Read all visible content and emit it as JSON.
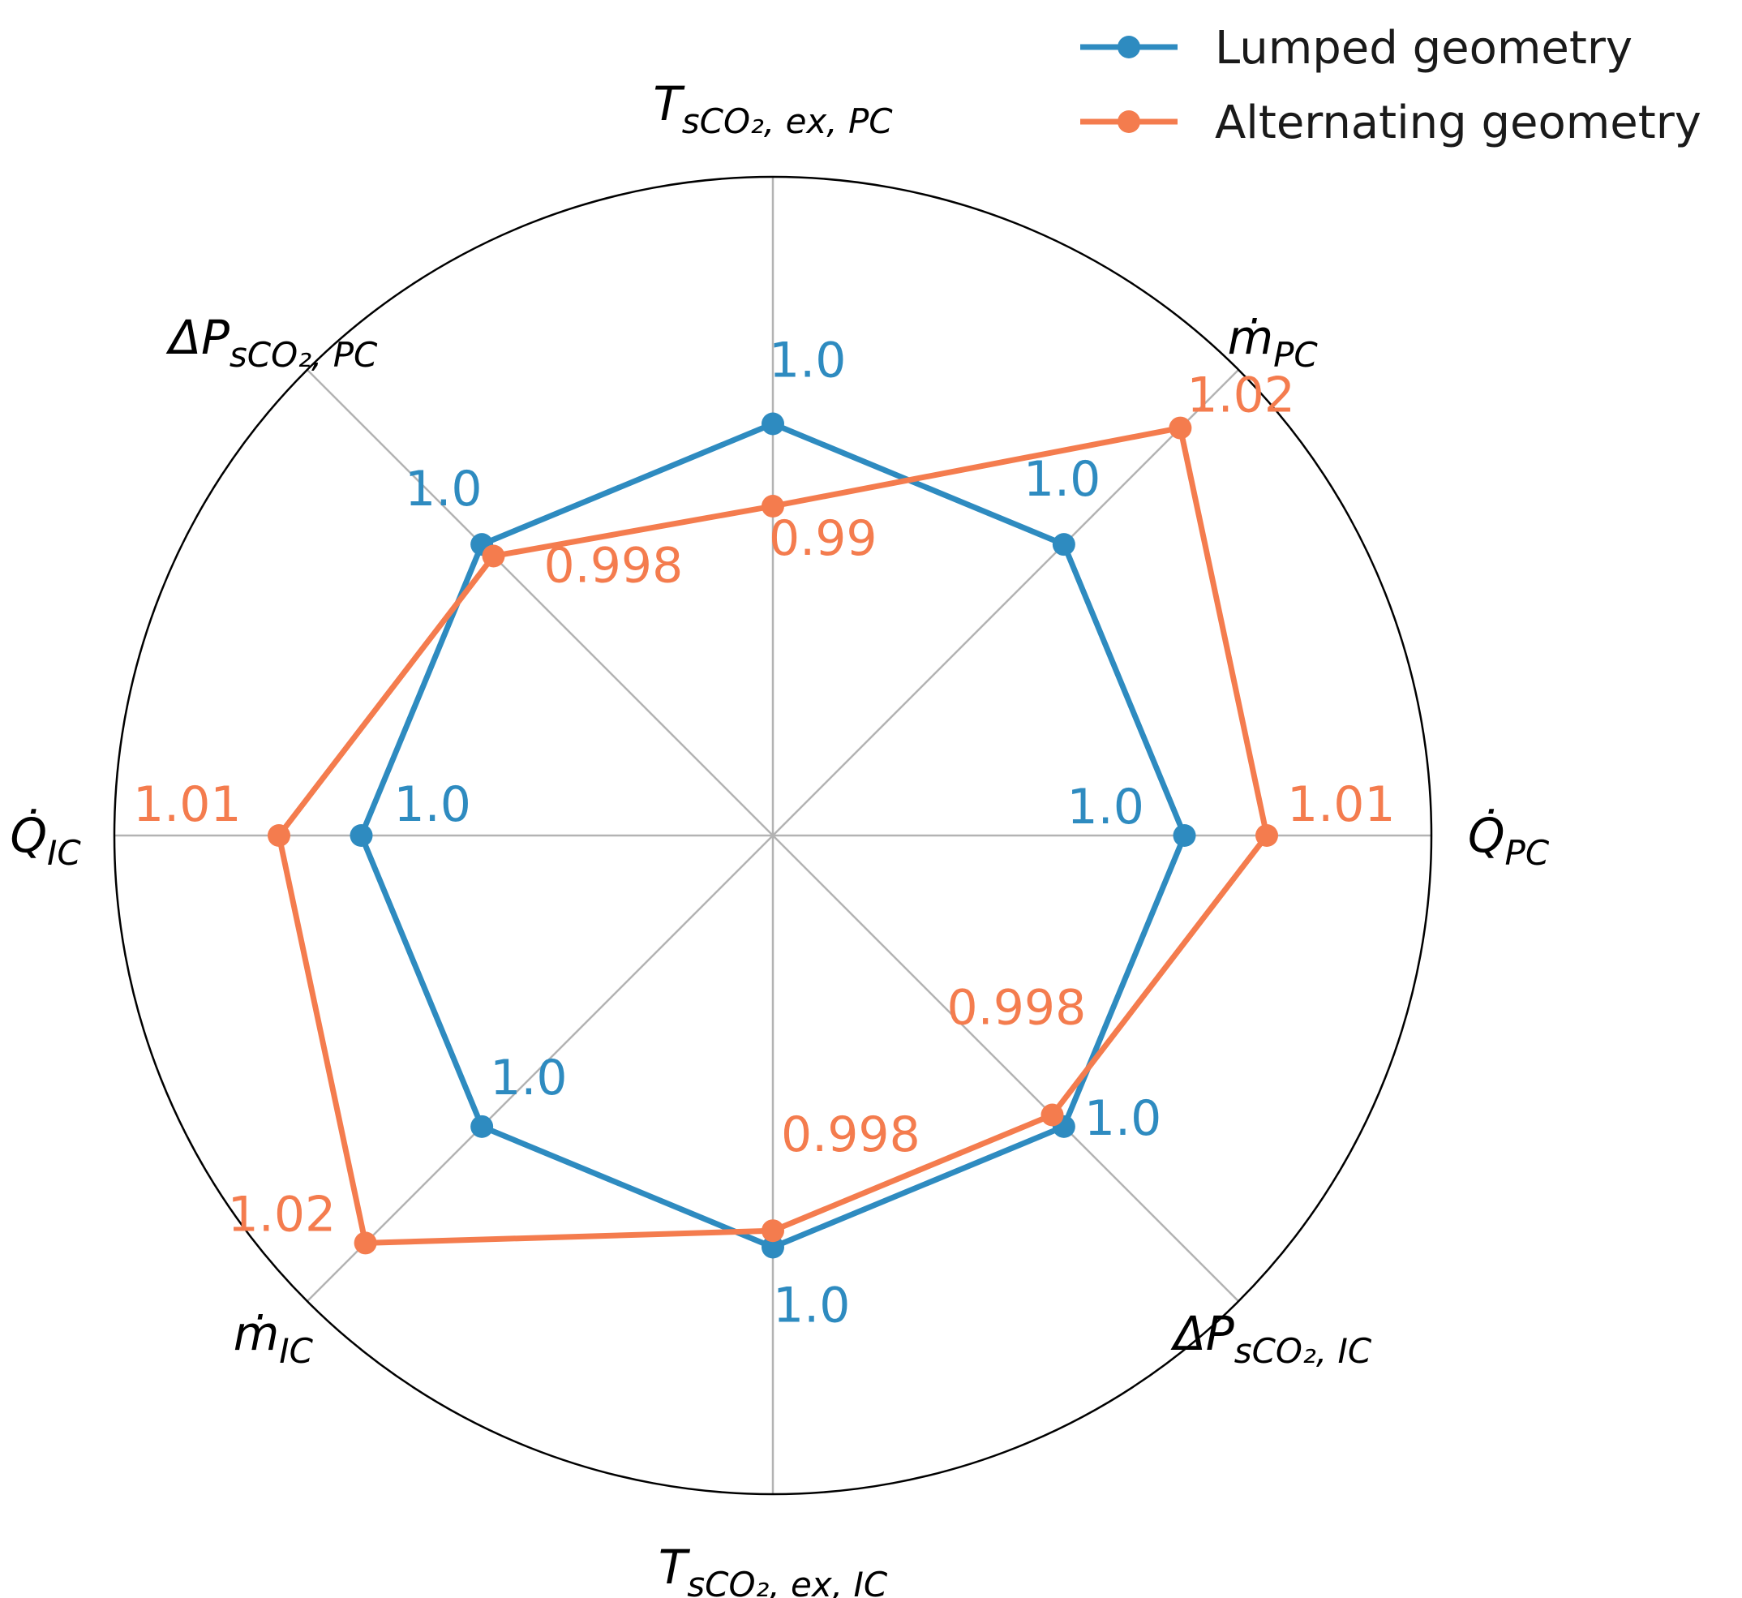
{
  "chart_data": {
    "type": "radar",
    "axes": [
      {
        "main": "Q̇",
        "sub": "PC"
      },
      {
        "main": "ṁ",
        "sub": "PC"
      },
      {
        "main": "T",
        "sub": "sCO₂, ex, PC"
      },
      {
        "main": "ΔP",
        "sub": "sCO₂, PC"
      },
      {
        "main": "Q̇",
        "sub": "IC"
      },
      {
        "main": "ṁ",
        "sub": "IC"
      },
      {
        "main": "T",
        "sub": "sCO₂, ex, IC"
      },
      {
        "main": "ΔP",
        "sub": "sCO₂, IC"
      }
    ],
    "rlim": [
      0.95,
      1.03
    ],
    "grid": true,
    "legend_position": "top-right",
    "series": [
      {
        "name": "Lumped geometry",
        "color": "#2e8bc0",
        "values": [
          1.0,
          1.0,
          1.0,
          1.0,
          1.0,
          1.0,
          1.0,
          1.0
        ],
        "labels": [
          "1.0",
          "1.0",
          "1.0",
          "1.0",
          "1.0",
          "1.0",
          "1.0",
          "1.0"
        ]
      },
      {
        "name": "Alternating geometry",
        "color": "#f47c4e",
        "values": [
          1.01,
          1.02,
          0.99,
          0.998,
          1.01,
          1.02,
          0.998,
          0.998
        ],
        "labels": [
          "1.01",
          "1.02",
          "0.99",
          "0.998",
          "1.01",
          "1.02",
          "0.998",
          "0.998"
        ]
      }
    ]
  }
}
